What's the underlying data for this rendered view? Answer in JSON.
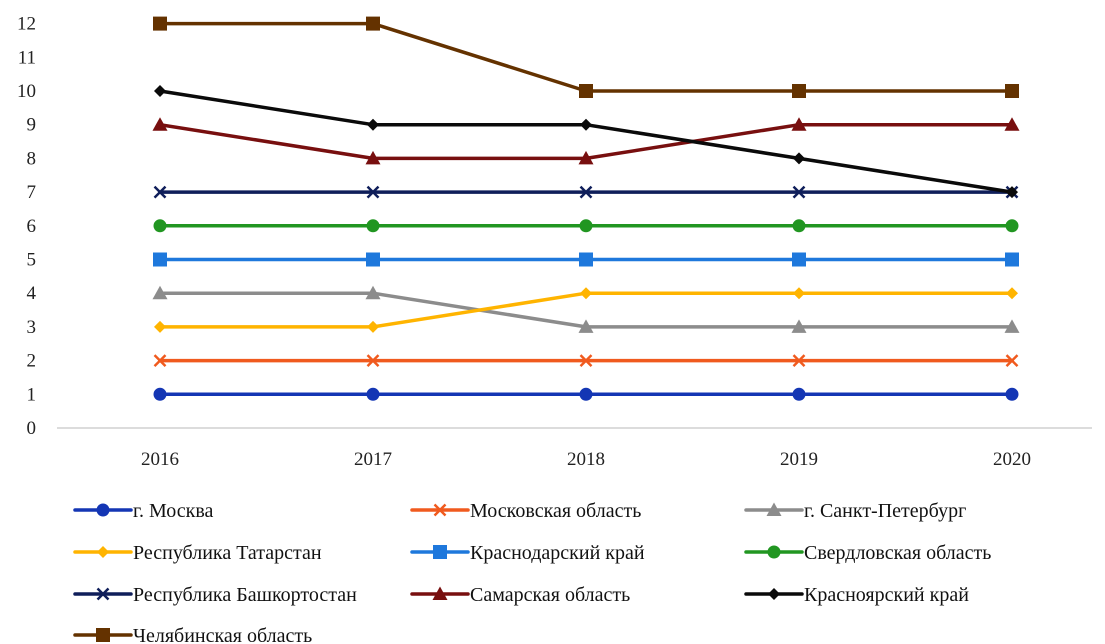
{
  "chart_data": {
    "type": "line",
    "title": "",
    "xlabel": "",
    "ylabel": "",
    "categories": [
      "2016",
      "2017",
      "2018",
      "2019",
      "2020"
    ],
    "ylim": [
      0,
      12
    ],
    "yticks": [
      0,
      1,
      2,
      3,
      4,
      5,
      6,
      7,
      8,
      9,
      10,
      11,
      12
    ],
    "grid": false,
    "legend_position": "bottom",
    "series": [
      {
        "name": "г. Москва",
        "values": [
          1,
          1,
          1,
          1,
          1
        ],
        "color": "#1436b4",
        "marker": "circle"
      },
      {
        "name": "Московская область",
        "values": [
          2,
          2,
          2,
          2,
          2
        ],
        "color": "#f05a1e",
        "marker": "x"
      },
      {
        "name": "г. Санкт-Петербург",
        "values": [
          4,
          4,
          3,
          3,
          3
        ],
        "color": "#8c8c8c",
        "marker": "triangle"
      },
      {
        "name": "Республика Татарстан",
        "values": [
          3,
          3,
          4,
          4,
          4
        ],
        "color": "#ffb400",
        "marker": "diamond"
      },
      {
        "name": "Краснодарский край",
        "values": [
          5,
          5,
          5,
          5,
          5
        ],
        "color": "#1e78dc",
        "marker": "square"
      },
      {
        "name": "Свердловская область",
        "values": [
          6,
          6,
          6,
          6,
          6
        ],
        "color": "#219621",
        "marker": "circle"
      },
      {
        "name": "Республика Башкортостан",
        "values": [
          7,
          7,
          7,
          7,
          7
        ],
        "color": "#0f1e5a",
        "marker": "x"
      },
      {
        "name": "Самарская область",
        "values": [
          9,
          8,
          8,
          9,
          9
        ],
        "color": "#780f0f",
        "marker": "triangle"
      },
      {
        "name": "Красноярский край",
        "values": [
          10,
          9,
          9,
          8,
          7
        ],
        "color": "#0a0a0a",
        "marker": "diamond"
      },
      {
        "name": "Челябинская область",
        "values": [
          12,
          12,
          10,
          10,
          10
        ],
        "color": "#643200",
        "marker": "square"
      }
    ]
  }
}
